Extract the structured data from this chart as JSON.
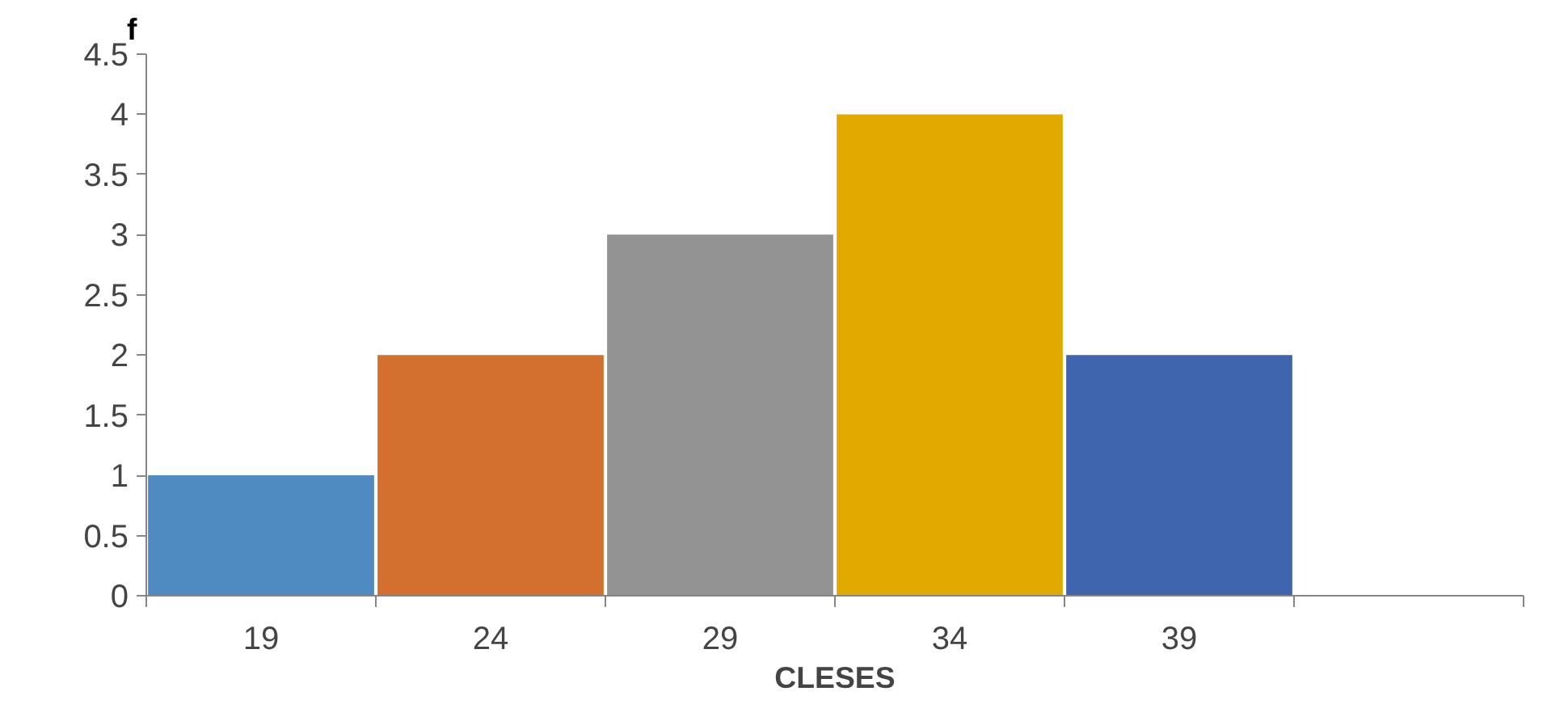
{
  "chart_data": {
    "type": "bar",
    "xlabel": "CLESES",
    "ylabel": "f",
    "categories": [
      "19",
      "24",
      "29",
      "34",
      "39",
      null
    ],
    "values": [
      1,
      2,
      3,
      4,
      2,
      null
    ],
    "colors": [
      "#4f8bc1",
      "#d4702e",
      "#939393",
      "#e2aa00",
      "#3f65ae",
      "#000000"
    ],
    "ylim": [
      0,
      4.5
    ],
    "yticks": [
      0,
      0.5,
      1,
      1.5,
      2,
      2.5,
      3,
      3.5,
      4,
      4.5
    ],
    "grid": false
  }
}
